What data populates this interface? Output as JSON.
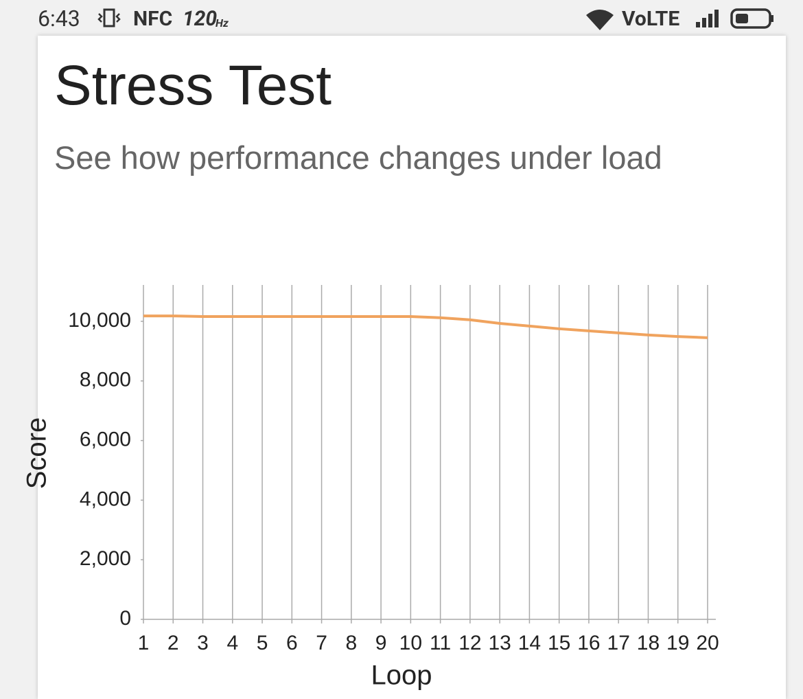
{
  "status_bar": {
    "time": "6:43",
    "nfc": "NFC",
    "refresh_rate": "120",
    "refresh_unit": "Hz",
    "network": "VoLTE"
  },
  "header": {
    "title": "Stress Test",
    "subtitle": "See how performance changes under load"
  },
  "chart_data": {
    "type": "line",
    "x": [
      1,
      2,
      3,
      4,
      5,
      6,
      7,
      8,
      9,
      10,
      11,
      12,
      13,
      14,
      15,
      16,
      17,
      18,
      19,
      20
    ],
    "values": [
      10180,
      10180,
      10160,
      10160,
      10160,
      10160,
      10160,
      10160,
      10160,
      10160,
      10120,
      10050,
      9930,
      9840,
      9750,
      9680,
      9610,
      9540,
      9490,
      9450
    ],
    "color": "#f0a35e",
    "xlim": [
      1,
      20
    ],
    "xticks": [
      1,
      2,
      3,
      4,
      5,
      6,
      7,
      8,
      9,
      10,
      11,
      12,
      13,
      14,
      15,
      16,
      17,
      18,
      19,
      20
    ],
    "ylim": [
      0,
      11220
    ],
    "yticks": [
      0,
      {
        "value": 2000,
        "label": "2,000"
      },
      {
        "value": 4000,
        "label": "4,000"
      },
      {
        "value": 6000,
        "label": "6,000"
      },
      {
        "value": 8000,
        "label": "8,000"
      },
      {
        "value": 10000,
        "label": "10,000"
      }
    ],
    "x_label": "Loop",
    "y_label": "Score",
    "grid": "x"
  }
}
